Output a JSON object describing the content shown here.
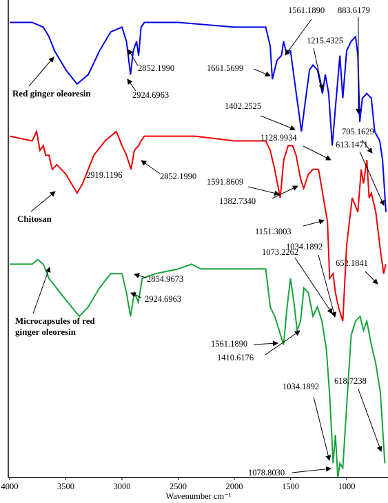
{
  "chart_data": {
    "type": "line",
    "xlabel": "Wavenumber cm⁻¹",
    "xlim": [
      4000,
      650
    ],
    "xticks": [
      4000,
      3500,
      3000,
      2500,
      2000,
      1500,
      1000
    ],
    "ylim": [
      0,
      100
    ],
    "series": [
      {
        "name": "Red ginger oleoresin",
        "color": "#0000ee",
        "x": [
          4000,
          3800,
          3700,
          3650,
          3600,
          3500,
          3400,
          3300,
          3200,
          3100,
          3000,
          2960,
          2924,
          2900,
          2870,
          2852,
          2830,
          2800,
          2500,
          2000,
          1800,
          1720,
          1680,
          1661,
          1620,
          1580,
          1561,
          1540,
          1500,
          1460,
          1402,
          1370,
          1330,
          1300,
          1260,
          1215,
          1190,
          1160,
          1128,
          1100,
          1060,
          1034,
          1000,
          960,
          920,
          900,
          883,
          860,
          820,
          780,
          750,
          705,
          680,
          650
        ],
        "values": [
          96,
          96,
          95,
          93,
          90,
          86,
          83,
          85,
          90,
          94,
          95,
          92,
          85,
          90,
          92,
          89,
          95,
          96,
          96,
          95,
          95,
          95,
          91,
          84,
          88,
          89,
          92,
          90,
          90,
          83,
          73,
          79,
          86,
          87,
          86,
          81,
          85,
          81,
          70,
          78,
          89,
          80,
          90,
          92,
          93,
          89,
          75,
          80,
          81,
          80,
          73,
          71,
          67,
          56
        ]
      },
      {
        "name": "Chitosan",
        "color": "#ee0000",
        "x": [
          4000,
          3800,
          3760,
          3730,
          3700,
          3680,
          3650,
          3620,
          3580,
          3500,
          3400,
          3350,
          3250,
          3150,
          3050,
          3000,
          2960,
          2919,
          2890,
          2852,
          2830,
          2800,
          2500,
          2380,
          2350,
          2000,
          1800,
          1720,
          1680,
          1640,
          1591,
          1560,
          1520,
          1480,
          1450,
          1410,
          1382,
          1340,
          1300,
          1250,
          1200,
          1170,
          1151,
          1120,
          1100,
          1073,
          1034,
          1000,
          950,
          900,
          870,
          850,
          820,
          800,
          780,
          740,
          700,
          670,
          652
        ],
        "values": [
          72,
          71,
          73,
          69,
          70,
          68,
          68,
          65,
          66,
          64,
          60,
          62,
          68,
          71,
          73,
          70,
          68,
          65,
          69,
          70,
          71,
          72,
          72,
          72,
          72,
          71,
          71,
          71,
          69,
          65,
          59,
          67,
          70,
          70,
          68,
          63,
          61,
          64,
          65,
          65,
          58,
          54,
          42,
          43,
          39,
          36,
          33,
          49,
          59,
          56,
          65,
          62,
          67,
          59,
          60,
          56,
          48,
          43,
          45
        ]
      },
      {
        "name": "Microcapsules of red ginger oleoresin",
        "color": "#1aa33a",
        "x": [
          4000,
          3800,
          3750,
          3700,
          3650,
          3550,
          3450,
          3380,
          3300,
          3200,
          3100,
          3000,
          2960,
          2924,
          2890,
          2854,
          2820,
          2700,
          2500,
          2380,
          2300,
          2000,
          1800,
          1720,
          1680,
          1640,
          1600,
          1561,
          1530,
          1500,
          1470,
          1440,
          1410,
          1380,
          1340,
          1300,
          1260,
          1220,
          1180,
          1150,
          1120,
          1100,
          1078,
          1060,
          1034,
          1000,
          960,
          920,
          880,
          850,
          820,
          780,
          740,
          700,
          660
        ],
        "values": [
          45,
          45,
          46,
          45,
          42,
          39,
          36,
          34,
          36,
          40,
          43,
          43,
          39,
          34,
          39,
          37,
          42,
          43,
          44,
          45,
          44,
          44,
          44,
          44,
          36,
          34,
          31,
          28,
          36,
          42,
          37,
          31,
          33,
          40,
          39,
          34,
          36,
          33,
          27,
          17,
          3,
          9,
          0,
          3,
          2,
          15,
          30,
          33,
          34,
          31,
          33,
          28,
          24,
          18,
          3
        ]
      }
    ],
    "annotations": [
      "2852.1990",
      "2924.6963",
      "1561.1890",
      "1661.5699",
      "1215.4325",
      "883.6179",
      "1402.2525",
      "1128.9934",
      "705.1629",
      "613.1471",
      "2919.1196",
      "2852.1990",
      "1591.8609",
      "1382.7340",
      "1151.3003",
      "1034.1892",
      "1073.2262",
      "652.1841",
      "2854.9673",
      "2924.6963",
      "1561.1890",
      "1410.6176",
      "1034.1892",
      "618.7238",
      "1078.8030"
    ]
  }
}
